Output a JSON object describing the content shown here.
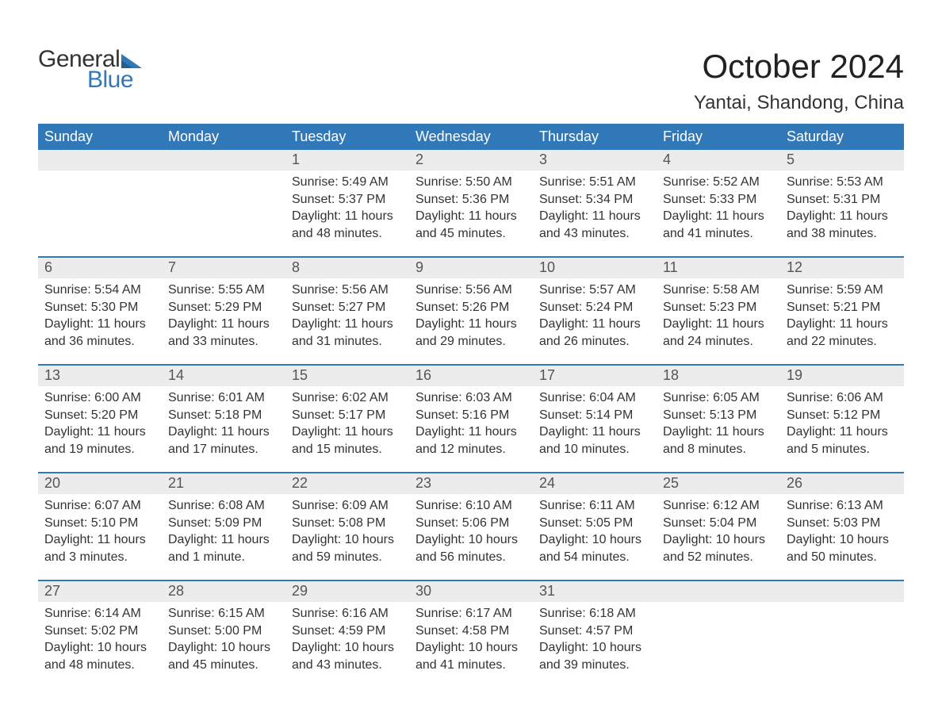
{
  "brand": {
    "text_general": "General",
    "text_blue": "Blue",
    "flag_color": "#3178b9"
  },
  "title": "October 2024",
  "location": "Yantai, Shandong, China",
  "colors": {
    "header_bg": "#3178b9",
    "header_text": "#ffffff",
    "daynum_bg": "#ececec",
    "week_border": "#3178b9",
    "body_text": "#333333",
    "daynum_text": "#555555",
    "page_bg": "#ffffff"
  },
  "typography": {
    "title_fontsize": 42,
    "location_fontsize": 24,
    "dow_fontsize": 18,
    "daynum_fontsize": 18,
    "cell_fontsize": 16,
    "font_family": "Arial"
  },
  "labels": {
    "sunrise": "Sunrise:",
    "sunset": "Sunset:",
    "daylight": "Daylight:"
  },
  "days_of_week": [
    "Sunday",
    "Monday",
    "Tuesday",
    "Wednesday",
    "Thursday",
    "Friday",
    "Saturday"
  ],
  "weeks": [
    [
      null,
      null,
      {
        "day": "1",
        "sunrise": "5:49 AM",
        "sunset": "5:37 PM",
        "daylight": "11 hours and 48 minutes."
      },
      {
        "day": "2",
        "sunrise": "5:50 AM",
        "sunset": "5:36 PM",
        "daylight": "11 hours and 45 minutes."
      },
      {
        "day": "3",
        "sunrise": "5:51 AM",
        "sunset": "5:34 PM",
        "daylight": "11 hours and 43 minutes."
      },
      {
        "day": "4",
        "sunrise": "5:52 AM",
        "sunset": "5:33 PM",
        "daylight": "11 hours and 41 minutes."
      },
      {
        "day": "5",
        "sunrise": "5:53 AM",
        "sunset": "5:31 PM",
        "daylight": "11 hours and 38 minutes."
      }
    ],
    [
      {
        "day": "6",
        "sunrise": "5:54 AM",
        "sunset": "5:30 PM",
        "daylight": "11 hours and 36 minutes."
      },
      {
        "day": "7",
        "sunrise": "5:55 AM",
        "sunset": "5:29 PM",
        "daylight": "11 hours and 33 minutes."
      },
      {
        "day": "8",
        "sunrise": "5:56 AM",
        "sunset": "5:27 PM",
        "daylight": "11 hours and 31 minutes."
      },
      {
        "day": "9",
        "sunrise": "5:56 AM",
        "sunset": "5:26 PM",
        "daylight": "11 hours and 29 minutes."
      },
      {
        "day": "10",
        "sunrise": "5:57 AM",
        "sunset": "5:24 PM",
        "daylight": "11 hours and 26 minutes."
      },
      {
        "day": "11",
        "sunrise": "5:58 AM",
        "sunset": "5:23 PM",
        "daylight": "11 hours and 24 minutes."
      },
      {
        "day": "12",
        "sunrise": "5:59 AM",
        "sunset": "5:21 PM",
        "daylight": "11 hours and 22 minutes."
      }
    ],
    [
      {
        "day": "13",
        "sunrise": "6:00 AM",
        "sunset": "5:20 PM",
        "daylight": "11 hours and 19 minutes."
      },
      {
        "day": "14",
        "sunrise": "6:01 AM",
        "sunset": "5:18 PM",
        "daylight": "11 hours and 17 minutes."
      },
      {
        "day": "15",
        "sunrise": "6:02 AM",
        "sunset": "5:17 PM",
        "daylight": "11 hours and 15 minutes."
      },
      {
        "day": "16",
        "sunrise": "6:03 AM",
        "sunset": "5:16 PM",
        "daylight": "11 hours and 12 minutes."
      },
      {
        "day": "17",
        "sunrise": "6:04 AM",
        "sunset": "5:14 PM",
        "daylight": "11 hours and 10 minutes."
      },
      {
        "day": "18",
        "sunrise": "6:05 AM",
        "sunset": "5:13 PM",
        "daylight": "11 hours and 8 minutes."
      },
      {
        "day": "19",
        "sunrise": "6:06 AM",
        "sunset": "5:12 PM",
        "daylight": "11 hours and 5 minutes."
      }
    ],
    [
      {
        "day": "20",
        "sunrise": "6:07 AM",
        "sunset": "5:10 PM",
        "daylight": "11 hours and 3 minutes."
      },
      {
        "day": "21",
        "sunrise": "6:08 AM",
        "sunset": "5:09 PM",
        "daylight": "11 hours and 1 minute."
      },
      {
        "day": "22",
        "sunrise": "6:09 AM",
        "sunset": "5:08 PM",
        "daylight": "10 hours and 59 minutes."
      },
      {
        "day": "23",
        "sunrise": "6:10 AM",
        "sunset": "5:06 PM",
        "daylight": "10 hours and 56 minutes."
      },
      {
        "day": "24",
        "sunrise": "6:11 AM",
        "sunset": "5:05 PM",
        "daylight": "10 hours and 54 minutes."
      },
      {
        "day": "25",
        "sunrise": "6:12 AM",
        "sunset": "5:04 PM",
        "daylight": "10 hours and 52 minutes."
      },
      {
        "day": "26",
        "sunrise": "6:13 AM",
        "sunset": "5:03 PM",
        "daylight": "10 hours and 50 minutes."
      }
    ],
    [
      {
        "day": "27",
        "sunrise": "6:14 AM",
        "sunset": "5:02 PM",
        "daylight": "10 hours and 48 minutes."
      },
      {
        "day": "28",
        "sunrise": "6:15 AM",
        "sunset": "5:00 PM",
        "daylight": "10 hours and 45 minutes."
      },
      {
        "day": "29",
        "sunrise": "6:16 AM",
        "sunset": "4:59 PM",
        "daylight": "10 hours and 43 minutes."
      },
      {
        "day": "30",
        "sunrise": "6:17 AM",
        "sunset": "4:58 PM",
        "daylight": "10 hours and 41 minutes."
      },
      {
        "day": "31",
        "sunrise": "6:18 AM",
        "sunset": "4:57 PM",
        "daylight": "10 hours and 39 minutes."
      },
      null,
      null
    ]
  ]
}
